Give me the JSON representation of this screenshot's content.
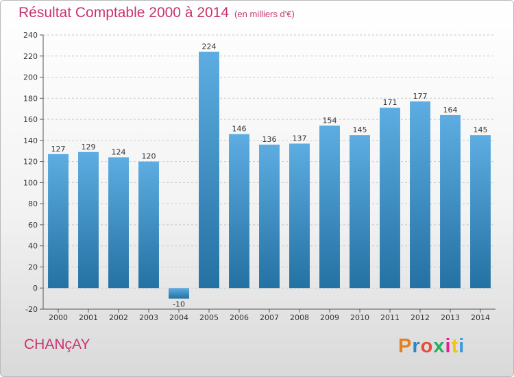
{
  "header": {
    "title": "Résultat Comptable 2000 à 2014",
    "subtitle": "(en milliers d'€)"
  },
  "footer": {
    "place": "CHANçAY",
    "logo_text": "Proxiti"
  },
  "colors": {
    "bar_light": "#5dade2",
    "bar_dark": "#2471a3",
    "title": "#c8336f",
    "grid": "#c8c8c8"
  },
  "chart_data": {
    "type": "bar",
    "title": "Résultat Comptable 2000 à 2014",
    "subtitle": "(en milliers d'€)",
    "xlabel": "",
    "ylabel": "",
    "categories": [
      "2000",
      "2001",
      "2002",
      "2003",
      "2004",
      "2005",
      "2006",
      "2007",
      "2008",
      "2009",
      "2010",
      "2011",
      "2012",
      "2013",
      "2014"
    ],
    "values": [
      127,
      129,
      124,
      120,
      -10,
      224,
      146,
      136,
      137,
      154,
      145,
      171,
      177,
      164,
      145
    ],
    "ylim": [
      -20,
      240
    ],
    "yticks": [
      -20,
      0,
      20,
      40,
      60,
      80,
      100,
      120,
      140,
      160,
      180,
      200,
      220,
      240
    ],
    "grid": true,
    "legend": "none"
  }
}
